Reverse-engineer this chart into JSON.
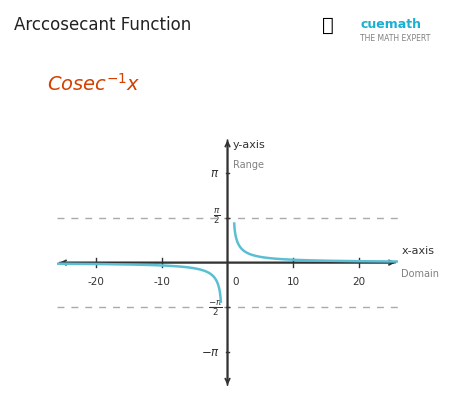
{
  "title": "Arccosecant Function",
  "formula_color": "#d44000",
  "curve_color": "#5bbfd4",
  "axis_color": "#333333",
  "dashed_color": "#aaaaaa",
  "background_color": "#ffffff",
  "x_label": "x-axis",
  "x_sublabel": "Domain",
  "y_label": "y-axis",
  "y_sublabel": "Range",
  "x_ticks": [
    -20,
    -10,
    10,
    20
  ],
  "pi": 3.14159265358979,
  "xlim": [
    -26,
    26
  ],
  "ylim": [
    -4.4,
    4.4
  ]
}
